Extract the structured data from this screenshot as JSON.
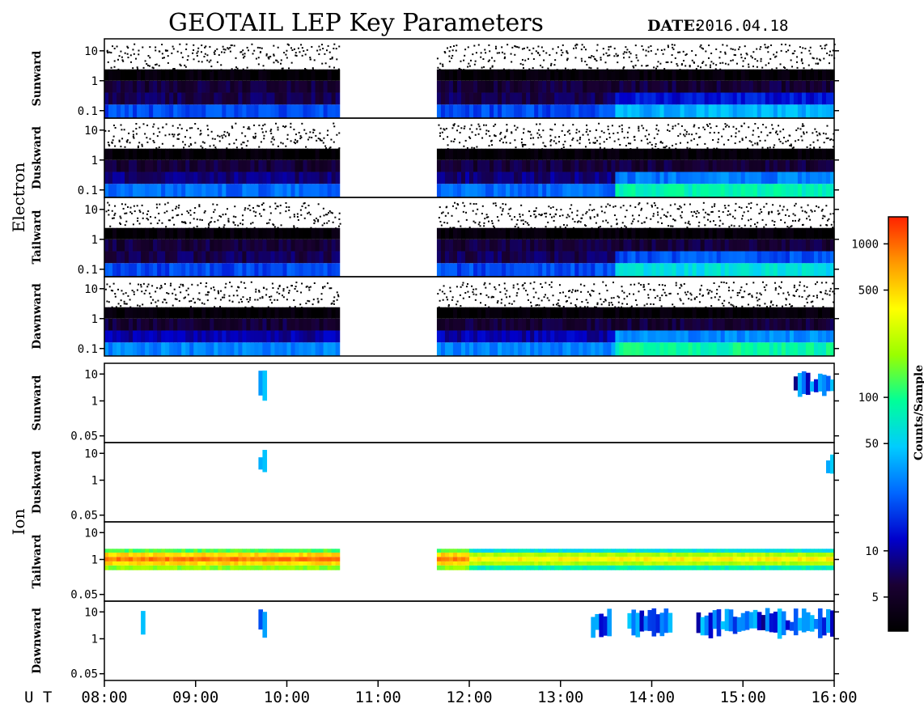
{
  "chart_data": {
    "type": "heatmap",
    "title": "GEOTAIL LEP Key Parameters",
    "date_label": "DATE:",
    "date": "2016.04.18",
    "x_axis_prefix": "U T",
    "x_ticks": [
      "08:00",
      "09:00",
      "10:00",
      "11:00",
      "12:00",
      "13:00",
      "14:00",
      "15:00",
      "16:00"
    ],
    "x_range_hours": [
      8,
      16
    ],
    "data_gap_hours": [
      10.58,
      11.65
    ],
    "colorbar": {
      "label": "Counts/Sample",
      "scale": "log",
      "range": [
        3,
        1500
      ],
      "ticks": [
        "1000",
        "500",
        "100",
        "50",
        "10",
        "5"
      ],
      "tick_values": [
        1000,
        500,
        100,
        50,
        10,
        5
      ],
      "colors": [
        "#000000",
        "#1a0033",
        "#0000cc",
        "#0066ff",
        "#00ccff",
        "#00ff99",
        "#99ff00",
        "#ffff00",
        "#ff9900",
        "#ff2200"
      ]
    },
    "groups": [
      {
        "name": "Electron",
        "y_scale": "log",
        "y_ticks": [
          "10",
          "1",
          "0.1"
        ],
        "y_tick_values": [
          10,
          1,
          0.1
        ],
        "panels": [
          {
            "name": "Sunward",
            "background_counts": 20,
            "high_energy_counts": 40
          },
          {
            "name": "Duskward",
            "background_counts": 25,
            "high_energy_counts": 80
          },
          {
            "name": "Tailward",
            "background_counts": 20,
            "high_energy_counts": 60
          },
          {
            "name": "Dawnward",
            "background_counts": 30,
            "high_energy_counts": 90
          }
        ]
      },
      {
        "name": "Ion",
        "y_scale": "log",
        "y_ticks": [
          "10",
          "1",
          "0.05"
        ],
        "y_tick_values": [
          10,
          1,
          0.05
        ],
        "panels": [
          {
            "name": "Sunward",
            "active_intervals": [
              [
                9.7,
                9.76
              ],
              [
                15.55,
                16.0
              ]
            ]
          },
          {
            "name": "Duskward",
            "active_intervals": [
              [
                9.7,
                9.76
              ],
              [
                15.9,
                16.0
              ]
            ]
          },
          {
            "name": "Tailward",
            "band_energy": [
              0.4,
              2.5
            ],
            "peak_counts": 900
          },
          {
            "name": "Dawnward",
            "active_intervals": [
              [
                8.4,
                8.43
              ],
              [
                9.7,
                9.76
              ],
              [
                13.35,
                13.55
              ],
              [
                13.75,
                14.2
              ],
              [
                14.5,
                16.0
              ]
            ]
          }
        ]
      }
    ]
  }
}
